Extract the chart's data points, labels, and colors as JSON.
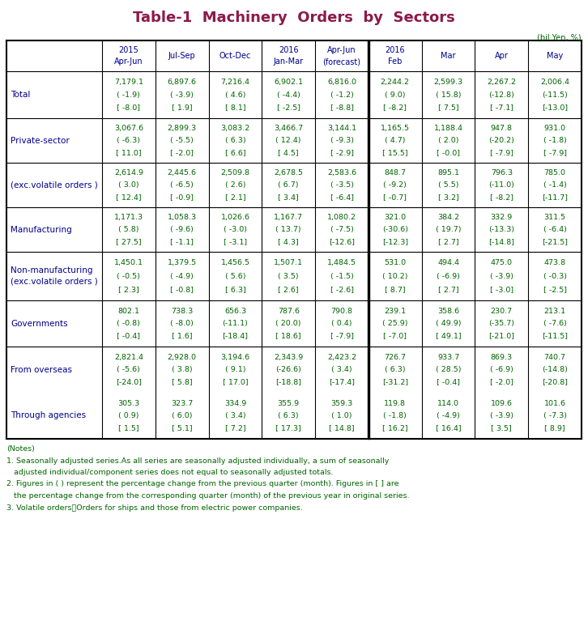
{
  "title": "Table-1  Machinery  Orders  by  Sectors",
  "title_color": "#8B1A4A",
  "unit_label": "(bil.Yen, %)",
  "header_color": "#00008B",
  "data_color": "#006400",
  "label_color": "#00008B",
  "notes_color": "#006400",
  "col_headers": [
    [
      "2015",
      "Apr-Jun"
    ],
    [
      "Jul-Sep",
      ""
    ],
    [
      "Oct-Dec",
      ""
    ],
    [
      "2016",
      "Jan-Mar"
    ],
    [
      "Apr-Jun",
      "(forecast)"
    ],
    [
      "2016",
      "Feb"
    ],
    [
      "Mar",
      ""
    ],
    [
      "Apr",
      ""
    ],
    [
      "May",
      ""
    ]
  ],
  "rows": [
    {
      "label": [
        "Total"
      ],
      "label_indent": 0,
      "data": [
        [
          "7,179.1",
          "( -1.9)",
          "[ -8.0]"
        ],
        [
          "6,897.6",
          "( -3.9)",
          "[ 1.9]"
        ],
        [
          "7,216.4",
          "( 4.6)",
          "[ 8.1]"
        ],
        [
          "6,902.1",
          "( -4.4)",
          "[ -2.5]"
        ],
        [
          "6,816.0",
          "( -1.2)",
          "[ -8.8]"
        ],
        [
          "2,244.2",
          "( 9.0)",
          "[ -8.2]"
        ],
        [
          "2,599.3",
          "( 15.8)",
          "[ 7.5]"
        ],
        [
          "2,267.2",
          "(-12.8)",
          "[ -7.1]"
        ],
        [
          "2,006.4",
          "(-11.5)",
          "[-13.0]"
        ]
      ]
    },
    {
      "label": [
        "Private-sector"
      ],
      "label_indent": 1,
      "data": [
        [
          "3,067.6",
          "( -6.3)",
          "[ 11.0]"
        ],
        [
          "2,899.3",
          "( -5.5)",
          "[ -2.0]"
        ],
        [
          "3,083.2",
          "( 6.3)",
          "[ 6.6]"
        ],
        [
          "3,466.7",
          "( 12.4)",
          "[ 4.5]"
        ],
        [
          "3,144.1",
          "( -9.3)",
          "[ -2.9]"
        ],
        [
          "1,165.5",
          "( 4.7)",
          "[ 15.5]"
        ],
        [
          "1,188.4",
          "( 2.0)",
          "[ -0.0]"
        ],
        [
          "947.8",
          "(-20.2)",
          "[ -7.9]"
        ],
        [
          "931.0",
          "( -1.8)",
          "[ -7.9]"
        ]
      ]
    },
    {
      "label": [
        "(exc.volatile orders )"
      ],
      "label_indent": 1,
      "data": [
        [
          "2,614.9",
          "( 3.0)",
          "[ 12.4]"
        ],
        [
          "2,445.6",
          "( -6.5)",
          "[ -0.9]"
        ],
        [
          "2,509.8",
          "( 2.6)",
          "[ 2.1]"
        ],
        [
          "2,678.5",
          "( 6.7)",
          "[ 3.4]"
        ],
        [
          "2,583.6",
          "( -3.5)",
          "[ -6.4]"
        ],
        [
          "848.7",
          "( -9.2)",
          "[ -0.7]"
        ],
        [
          "895.1",
          "( 5.5)",
          "[ 3.2]"
        ],
        [
          "796.3",
          "(-11.0)",
          "[ -8.2]"
        ],
        [
          "785.0",
          "( -1.4)",
          "[-11.7]"
        ]
      ]
    },
    {
      "label": [
        "Manufacturing"
      ],
      "label_indent": 2,
      "data": [
        [
          "1,171.3",
          "( 5.8)",
          "[ 27.5]"
        ],
        [
          "1,058.3",
          "( -9.6)",
          "[ -1.1]"
        ],
        [
          "1,026.6",
          "( -3.0)",
          "[ -3.1]"
        ],
        [
          "1,167.7",
          "( 13.7)",
          "[ 4.3]"
        ],
        [
          "1,080.2",
          "( -7.5)",
          "[-12.6]"
        ],
        [
          "321.0",
          "(-30.6)",
          "[-12.3]"
        ],
        [
          "384.2",
          "( 19.7)",
          "[ 2.7]"
        ],
        [
          "332.9",
          "(-13.3)",
          "[-14.8]"
        ],
        [
          "311.5",
          "( -6.4)",
          "[-21.5]"
        ]
      ]
    },
    {
      "label": [
        "Non-manufacturing",
        "(exc.volatile orders )"
      ],
      "label_indent": 2,
      "data": [
        [
          "1,450.1",
          "( -0.5)",
          "[ 2.3]"
        ],
        [
          "1,379.5",
          "( -4.9)",
          "[ -0.8]"
        ],
        [
          "1,456.5",
          "( 5.6)",
          "[ 6.3]"
        ],
        [
          "1,507.1",
          "( 3.5)",
          "[ 2.6]"
        ],
        [
          "1,484.5",
          "( -1.5)",
          "[ -2.6]"
        ],
        [
          "531.0",
          "( 10.2)",
          "[ 8.7]"
        ],
        [
          "494.4",
          "( -6.9)",
          "[ 2.7]"
        ],
        [
          "475.0",
          "( -3.9)",
          "[ -3.0]"
        ],
        [
          "473.8",
          "( -0.3)",
          "[ -2.5]"
        ]
      ]
    },
    {
      "label": [
        "Governments"
      ],
      "label_indent": 1,
      "data": [
        [
          "802.1",
          "( -0.8)",
          "[ -0.4]"
        ],
        [
          "738.3",
          "( -8.0)",
          "[ 1.6]"
        ],
        [
          "656.3",
          "(-11.1)",
          "[-18.4]"
        ],
        [
          "787.6",
          "( 20.0)",
          "[ 18.6]"
        ],
        [
          "790.8",
          "( 0.4)",
          "[ -7.9]"
        ],
        [
          "239.1",
          "( 25.9)",
          "[ -7.0]"
        ],
        [
          "358.6",
          "( 49.9)",
          "[ 49.1]"
        ],
        [
          "230.7",
          "(-35.7)",
          "[-21.0]"
        ],
        [
          "213.1",
          "( -7.6)",
          "[-11.5]"
        ]
      ]
    },
    {
      "label": [
        "From overseas"
      ],
      "label_indent": 1,
      "data": [
        [
          "2,821.4",
          "( -5.6)",
          "[-24.0]"
        ],
        [
          "2,928.0",
          "( 3.8)",
          "[ 5.8]"
        ],
        [
          "3,194.6",
          "( 9.1)",
          "[ 17.0]"
        ],
        [
          "2,343.9",
          "(-26.6)",
          "[-18.8]"
        ],
        [
          "2,423.2",
          "( 3.4)",
          "[-17.4]"
        ],
        [
          "726.7",
          "( 6.3)",
          "[-31.2]"
        ],
        [
          "933.7",
          "( 28.5)",
          "[ -0.4]"
        ],
        [
          "869.3",
          "( -6.9)",
          "[ -2.0]"
        ],
        [
          "740.7",
          "(-14.8)",
          "[-20.8]"
        ]
      ]
    },
    {
      "label": [
        "Through agencies"
      ],
      "label_indent": 1,
      "data": [
        [
          "305.3",
          "( 0.9)",
          "[ 1.5]"
        ],
        [
          "323.7",
          "( 6.0)",
          "[ 5.1]"
        ],
        [
          "334.9",
          "( 3.4)",
          "[ 7.2]"
        ],
        [
          "355.9",
          "( 6.3)",
          "[ 17.3]"
        ],
        [
          "359.3",
          "( 1.0)",
          "[ 14.8]"
        ],
        [
          "119.8",
          "( -1.8)",
          "[ 16.2]"
        ],
        [
          "114.0",
          "( -4.9)",
          "[ 16.4]"
        ],
        [
          "109.6",
          "( -3.9)",
          "[ 3.5]"
        ],
        [
          "101.6",
          "( -7.3)",
          "[ 8.9]"
        ]
      ]
    }
  ],
  "notes": [
    "(Notes)",
    "1. Seasonally adjusted series.As all series are seasonally adjusted individually, a sum of seasonally",
    "   adjusted individual/component series does not equal to seasonally adjusted totals.",
    "2. Figures in ( ) represent the percentage change from the previous quarter (month). Figures in [ ] are",
    "   the percentage change from the corresponding quarter (month) of the previous year in original series.",
    "3. Volatile orders：Orders for ships and those from electric power companies."
  ]
}
